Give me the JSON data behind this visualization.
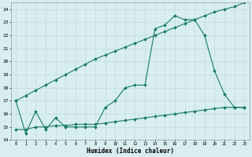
{
  "x": [
    0,
    1,
    2,
    3,
    4,
    5,
    6,
    7,
    8,
    9,
    10,
    11,
    12,
    13,
    14,
    15,
    16,
    17,
    18,
    19,
    20,
    21,
    22,
    23
  ],
  "line1": [
    17.0,
    14.5,
    16.2,
    14.8,
    15.7,
    15.0,
    15.0,
    15.0,
    15.0,
    16.5,
    17.0,
    18.0,
    18.2,
    18.2,
    22.5,
    22.8,
    23.5,
    23.2,
    23.2,
    22.0,
    19.3,
    17.5,
    16.5,
    16.5
  ],
  "line2": [
    17.0,
    17.4,
    17.8,
    18.2,
    18.6,
    19.0,
    19.4,
    19.8,
    20.2,
    20.5,
    20.8,
    21.1,
    21.4,
    21.7,
    22.0,
    22.3,
    22.6,
    22.9,
    23.2,
    23.5,
    23.8,
    24.0,
    24.2,
    24.5
  ],
  "line3": [
    14.8,
    14.8,
    15.0,
    15.0,
    15.1,
    15.1,
    15.2,
    15.2,
    15.2,
    15.3,
    15.4,
    15.5,
    15.6,
    15.7,
    15.8,
    15.9,
    16.0,
    16.1,
    16.2,
    16.3,
    16.4,
    16.5,
    16.5,
    16.5
  ],
  "color": "#1a7a6a",
  "bg_color": "#d8eef0",
  "grid_color": "#b8d8dc",
  "xlabel": "Humidex (Indice chaleur)",
  "ylabel_ticks": [
    14,
    15,
    16,
    17,
    18,
    19,
    20,
    21,
    22,
    23,
    24
  ],
  "xlim": [
    -0.5,
    23.5
  ],
  "ylim": [
    14,
    24.5
  ],
  "xtick_labels": [
    "0",
    "1",
    "2",
    "3",
    "4",
    "5",
    "6",
    "7",
    "8",
    "9",
    "10",
    "11",
    "12",
    "13",
    "14",
    "15",
    "16",
    "17",
    "18",
    "19",
    "20",
    "21",
    "22",
    "23"
  ]
}
